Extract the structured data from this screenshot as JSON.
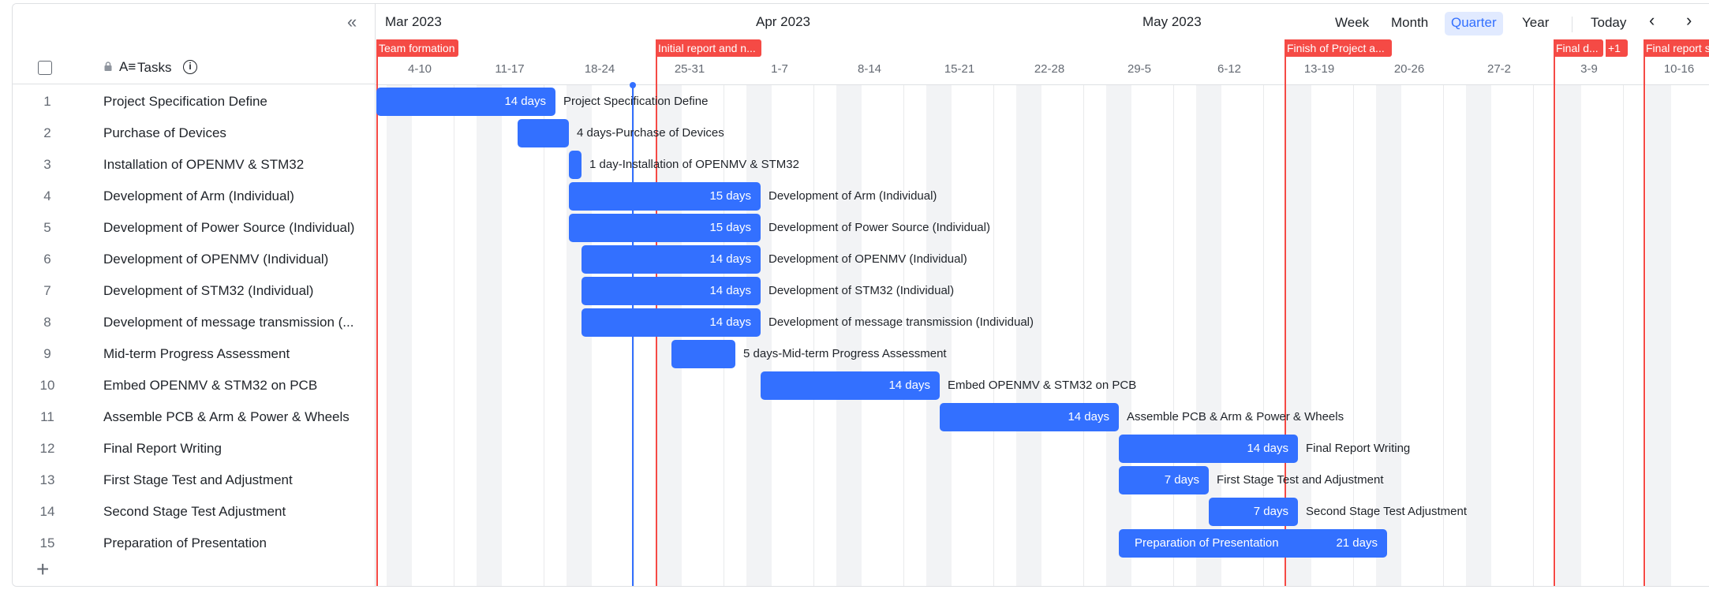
{
  "panel": {
    "collapse_icon": "«",
    "tasks_title": "Tasks",
    "sort_icon": "A≡",
    "info_icon": "i",
    "add_icon": "+"
  },
  "tasks": [
    {
      "num": "1",
      "name": "Project Specification Define",
      "days": "14 days",
      "label": "Project Specification Define"
    },
    {
      "num": "2",
      "name": "Purchase of Devices",
      "days": "4 days",
      "label": "4 days-Purchase of Devices"
    },
    {
      "num": "3",
      "name": "Installation of OPENMV & STM32",
      "days": "1 day",
      "label": "1 day-Installation of OPENMV & STM32"
    },
    {
      "num": "4",
      "name": "Development of Arm (Individual)",
      "days": "15 days",
      "label": "Development of Arm (Individual)"
    },
    {
      "num": "5",
      "name": "Development of Power Source (Individual)",
      "days": "15 days",
      "label": "Development of Power Source (Individual)"
    },
    {
      "num": "6",
      "name": "Development of OPENMV (Individual)",
      "days": "14 days",
      "label": "Development of OPENMV (Individual)"
    },
    {
      "num": "7",
      "name": "Development of STM32 (Individual)",
      "days": "14 days",
      "label": "Development of STM32 (Individual)"
    },
    {
      "num": "8",
      "name": "Development of message transmission (...",
      "days": "14 days",
      "label": "Development of message transmission (Individual)"
    },
    {
      "num": "9",
      "name": "Mid-term Progress Assessment",
      "days": "5 days",
      "label": "5 days-Mid-term Progress Assessment"
    },
    {
      "num": "10",
      "name": "Embed OPENMV & STM32 on PCB",
      "days": "14 days",
      "label": "Embed OPENMV & STM32 on PCB"
    },
    {
      "num": "11",
      "name": "Assemble PCB & Arm & Power & Wheels",
      "days": "14 days",
      "label": "Assemble PCB & Arm & Power & Wheels"
    },
    {
      "num": "12",
      "name": "Final Report Writing",
      "days": "14 days",
      "label": "Final Report Writing"
    },
    {
      "num": "13",
      "name": "First Stage Test and Adjustment",
      "days": "7 days",
      "label": "First Stage Test and Adjustment"
    },
    {
      "num": "14",
      "name": "Second Stage Test Adjustment",
      "days": "7 days",
      "label": "Second Stage Test Adjustment"
    },
    {
      "num": "15",
      "name": "Preparation of Presentation",
      "days": "21 days",
      "label": "Preparation of Presentation"
    }
  ],
  "timeline": {
    "months": [
      "Mar 2023",
      "Apr 2023",
      "May 2023"
    ],
    "weeks": [
      "4-10",
      "11-17",
      "18-24",
      "25-31",
      "1-7",
      "8-14",
      "15-21",
      "22-28",
      "29-5",
      "6-12",
      "13-19",
      "20-26",
      "27-2",
      "3-9",
      "10-16"
    ]
  },
  "view_controls": {
    "week": "Week",
    "month": "Month",
    "quarter": "Quarter",
    "year": "Year",
    "active": "Quarter",
    "today": "Today",
    "prev_icon": "‹",
    "next_icon": "›"
  },
  "milestones": [
    {
      "label": "Team formation"
    },
    {
      "label": "Initial report and n..."
    },
    {
      "label": "Finish of Project a..."
    },
    {
      "label": "Final d..."
    },
    {
      "label": "+1"
    },
    {
      "label": "Final report s"
    }
  ],
  "colors": {
    "bar": "#3370ff",
    "milestone": "#f54a45",
    "today": "#3370ff",
    "active_view_bg": "#e1eaff"
  }
}
